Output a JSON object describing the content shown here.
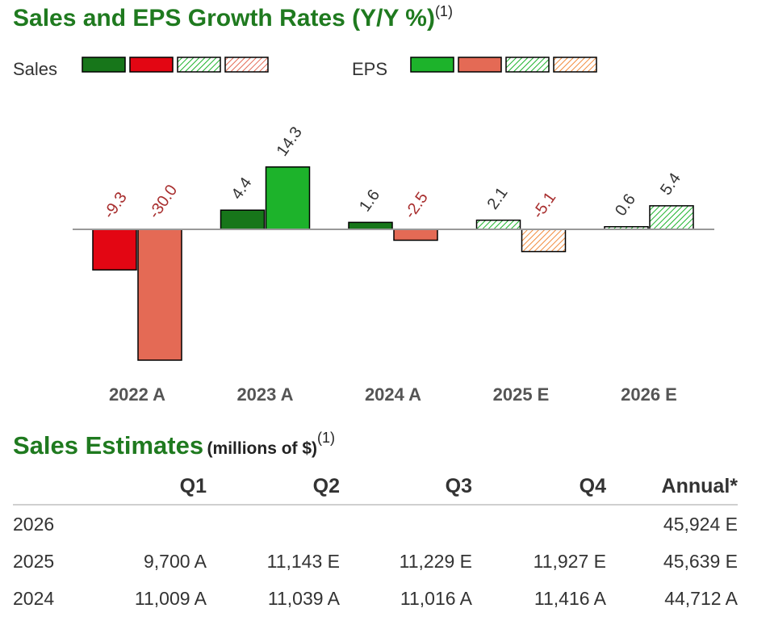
{
  "title": "Sales and EPS Growth Rates (Y/Y %)",
  "title_footnote": "(1)",
  "legend": {
    "sales_label": "Sales",
    "eps_label": "EPS"
  },
  "colors": {
    "sales_pos": "#17761a",
    "sales_neg": "#e30613",
    "eps_pos": "#1db32b",
    "eps_neg": "#e46a55",
    "label_neg": "#a82e2e",
    "label_pos": "#333333",
    "title_green": "#1f7a1f"
  },
  "chart_data": {
    "type": "bar",
    "title": "Sales and EPS Growth Rates (Y/Y %)",
    "categories": [
      "2022 A",
      "2023 A",
      "2024 A",
      "2025 E",
      "2026 E"
    ],
    "series": [
      {
        "name": "Sales",
        "values": [
          -9.3,
          4.4,
          1.6,
          2.1,
          0.6
        ],
        "labels": [
          "-9.3",
          "4.4",
          "1.6",
          "2.1",
          "0.6"
        ],
        "estimate": [
          false,
          false,
          false,
          true,
          true
        ]
      },
      {
        "name": "EPS",
        "values": [
          -30.0,
          14.3,
          -2.5,
          -5.1,
          5.4
        ],
        "labels": [
          "-30.0",
          "14.3",
          "-2.5",
          "-5.1",
          "5.4"
        ],
        "estimate": [
          false,
          false,
          false,
          true,
          true
        ]
      }
    ]
  },
  "sales_estimates": {
    "title": "Sales Estimates",
    "subtitle": "(millions of $)",
    "footnote": "(1)",
    "columns": [
      "",
      "Q1",
      "Q2",
      "Q3",
      "Q4",
      "Annual*"
    ],
    "rows": [
      [
        "2026",
        "",
        "",
        "",
        "",
        "45,924 E"
      ],
      [
        "2025",
        "9,700 A",
        "11,143 E",
        "11,229 E",
        "11,927 E",
        "45,639 E"
      ],
      [
        "2024",
        "11,009 A",
        "11,039 A",
        "11,016 A",
        "11,416 A",
        "44,712 A"
      ]
    ]
  }
}
